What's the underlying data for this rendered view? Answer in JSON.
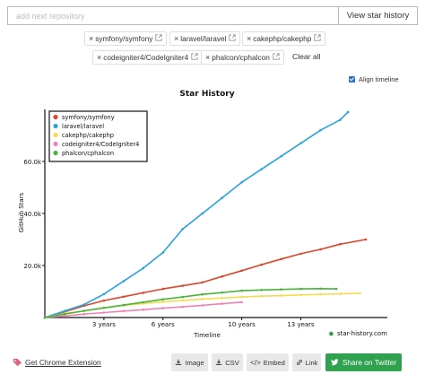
{
  "search": {
    "placeholder": "add next repository",
    "button_label": "View star history"
  },
  "repos": [
    {
      "label": "symfony/symfony"
    },
    {
      "label": "laravel/laravel"
    },
    {
      "label": "cakephp/cakephp"
    },
    {
      "label": "codeigniter4/CodeIgniter4"
    },
    {
      "label": "phalcon/cphalcon"
    }
  ],
  "clear_all_label": "Clear all",
  "align_timeline": {
    "label": "Align timeline",
    "checked": true
  },
  "chart_data": {
    "type": "line",
    "title": "Star History",
    "xlabel": "Timeline",
    "ylabel": "GitHub Stars",
    "x_unit": "years",
    "xlim": [
      0,
      16.3
    ],
    "ylim": [
      0,
      80000
    ],
    "x_ticks": [
      {
        "value": 3,
        "label": "3 years"
      },
      {
        "value": 6,
        "label": "6 years"
      },
      {
        "value": 10,
        "label": "10 years"
      },
      {
        "value": 13,
        "label": "13 years"
      }
    ],
    "y_ticks": [
      {
        "value": 20000,
        "label": "20.0k"
      },
      {
        "value": 40000,
        "label": "40.0k"
      },
      {
        "value": 60000,
        "label": "60.0k"
      }
    ],
    "watermark": "star-history.com",
    "series": [
      {
        "name": "symfony/symfony",
        "color": "#dd4528",
        "points": [
          [
            0,
            0
          ],
          [
            1,
            2200
          ],
          [
            2,
            4500
          ],
          [
            3,
            6500
          ],
          [
            4,
            8000
          ],
          [
            5,
            9500
          ],
          [
            6,
            11000
          ],
          [
            7,
            12200
          ],
          [
            8,
            13500
          ],
          [
            9,
            15800
          ],
          [
            10,
            18000
          ],
          [
            11,
            20300
          ],
          [
            12,
            22500
          ],
          [
            13,
            24500
          ],
          [
            14,
            26200
          ],
          [
            15,
            28200
          ],
          [
            16.3,
            30000
          ]
        ]
      },
      {
        "name": "laravel/laravel",
        "color": "#28a3dd",
        "points": [
          [
            0,
            0
          ],
          [
            1,
            2500
          ],
          [
            2,
            5000
          ],
          [
            3,
            9000
          ],
          [
            4,
            14000
          ],
          [
            5,
            19000
          ],
          [
            6,
            25000
          ],
          [
            7,
            34000
          ],
          [
            8,
            40000
          ],
          [
            9,
            46000
          ],
          [
            10,
            52000
          ],
          [
            11,
            57000
          ],
          [
            12,
            62000
          ],
          [
            13,
            67000
          ],
          [
            14,
            72000
          ],
          [
            15,
            76000
          ],
          [
            15.4,
            79000
          ]
        ]
      },
      {
        "name": "cakephp/cakephp",
        "color": "#f3db52",
        "points": [
          [
            0,
            0
          ],
          [
            1,
            1500
          ],
          [
            2,
            2500
          ],
          [
            3,
            3800
          ],
          [
            4,
            4700
          ],
          [
            5,
            5400
          ],
          [
            6,
            6000
          ],
          [
            7,
            6600
          ],
          [
            8,
            7100
          ],
          [
            9,
            7500
          ],
          [
            10,
            7900
          ],
          [
            11,
            8200
          ],
          [
            12,
            8400
          ],
          [
            13,
            8700
          ],
          [
            14,
            8900
          ],
          [
            15,
            9100
          ],
          [
            16,
            9300
          ]
        ]
      },
      {
        "name": "codeigniter4/CodeIgniter4",
        "color": "#ed84b5",
        "points": [
          [
            0,
            0
          ],
          [
            1,
            600
          ],
          [
            2,
            1300
          ],
          [
            3,
            1900
          ],
          [
            4,
            2500
          ],
          [
            5,
            3000
          ],
          [
            6,
            3600
          ],
          [
            7,
            4100
          ],
          [
            8,
            4700
          ],
          [
            9,
            5300
          ],
          [
            10,
            5900
          ]
        ]
      },
      {
        "name": "phalcon/cphalcon",
        "color": "#4cb43c",
        "points": [
          [
            0,
            0
          ],
          [
            1,
            1300
          ],
          [
            2,
            2600
          ],
          [
            3,
            3700
          ],
          [
            4,
            4800
          ],
          [
            5,
            5900
          ],
          [
            6,
            7000
          ],
          [
            7,
            7900
          ],
          [
            8,
            8900
          ],
          [
            9,
            9600
          ],
          [
            10,
            10300
          ],
          [
            11,
            10600
          ],
          [
            12,
            10800
          ],
          [
            13,
            11000
          ],
          [
            14,
            11100
          ],
          [
            14.8,
            11000
          ]
        ]
      }
    ]
  },
  "footer": {
    "chrome_extension": "Get Chrome Extension",
    "image_label": "Image",
    "csv_label": "CSV",
    "embed_label": "Embed",
    "link_label": "Link",
    "share_label": "Share on Twitter"
  }
}
